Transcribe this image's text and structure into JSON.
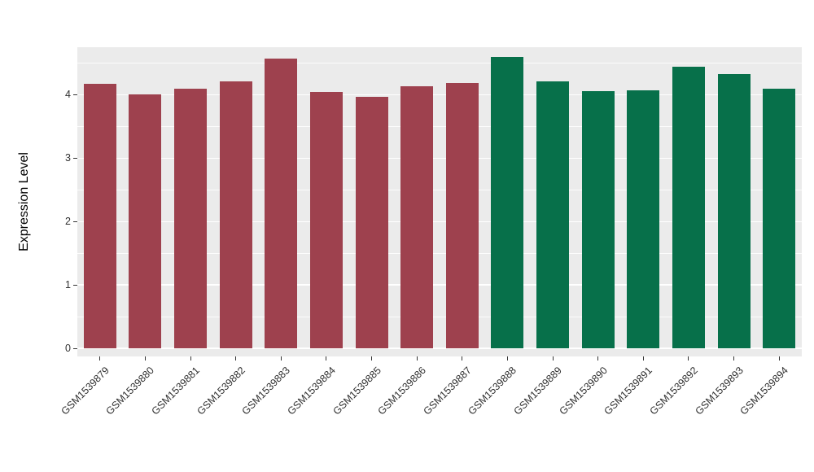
{
  "chart_data": {
    "type": "bar",
    "title": "",
    "xlabel": "",
    "ylabel": "Expression Level",
    "ylim": [
      0,
      4.75
    ],
    "yticks": [
      "0",
      "1",
      "2",
      "3",
      "4"
    ],
    "grid": true,
    "legend": false,
    "categories": [
      "GSM1539879",
      "GSM1539880",
      "GSM1539881",
      "GSM1539882",
      "GSM1539883",
      "GSM1539884",
      "GSM1539885",
      "GSM1539886",
      "GSM1539887",
      "GSM1539888",
      "GSM1539889",
      "GSM1539890",
      "GSM1539891",
      "GSM1539892",
      "GSM1539893",
      "GSM1539894"
    ],
    "series": [
      {
        "name": "Expression Level",
        "values": [
          4.17,
          4.01,
          4.09,
          4.21,
          4.57,
          4.04,
          3.97,
          4.14,
          4.19,
          4.6,
          4.21,
          4.06,
          4.07,
          4.44,
          4.33,
          4.09
        ]
      }
    ],
    "bar_colors": [
      "#9E414E",
      "#9E414E",
      "#9E414E",
      "#9E414E",
      "#9E414E",
      "#9E414E",
      "#9E414E",
      "#9E414E",
      "#9E414E",
      "#07704A",
      "#07704A",
      "#07704A",
      "#07704A",
      "#07704A",
      "#07704A",
      "#07704A"
    ],
    "groups": [
      {
        "color": "#9E414E",
        "count": 9
      },
      {
        "color": "#07704A",
        "count": 7
      }
    ]
  },
  "colors": {
    "panel_background": "#EBEBEB",
    "gridline": "#FFFFFF",
    "tick_text": "#303030",
    "axis_title_text": "#000000"
  }
}
